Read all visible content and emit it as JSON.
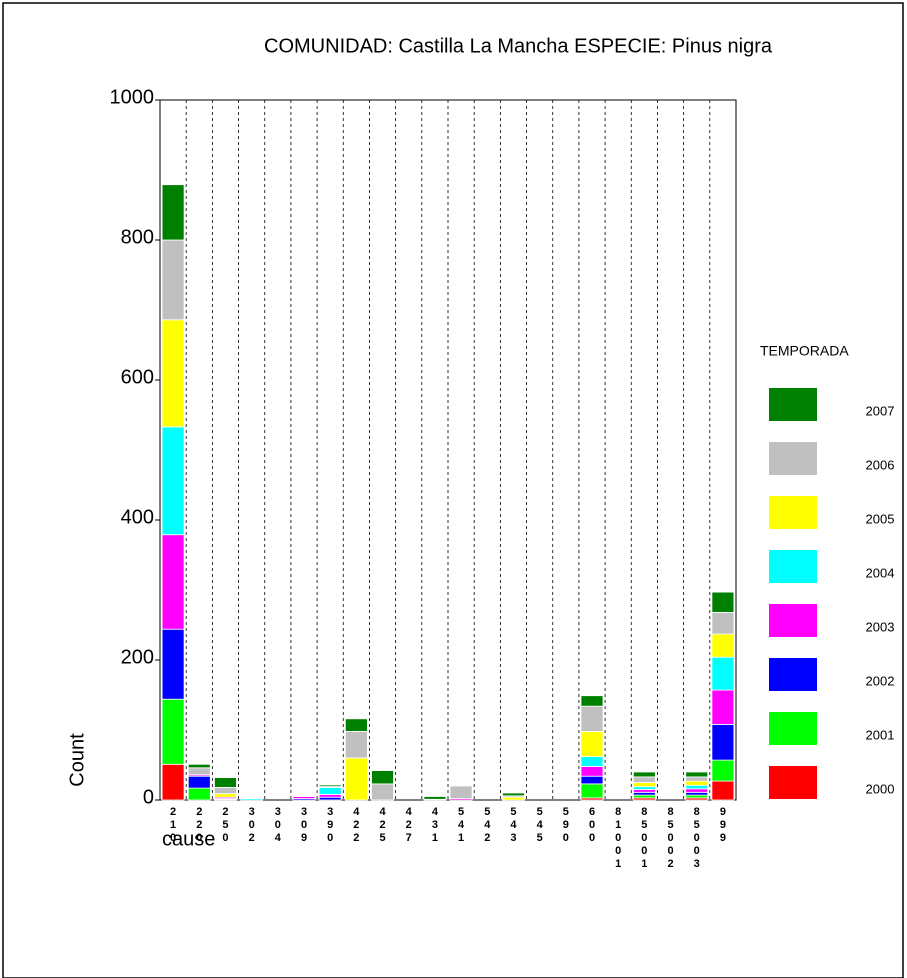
{
  "chart_data": {
    "type": "stacked-bar",
    "title": "COMUNIDAD: Castilla La Mancha ESPECIE: Pinus nigra",
    "y_label": "Count",
    "x_label": "cause",
    "legend_title": "TEMPORADA",
    "categories": [
      "210",
      "220",
      "250",
      "302",
      "304",
      "309",
      "390",
      "422",
      "425",
      "427",
      "431",
      "541",
      "542",
      "543",
      "545",
      "590",
      "600",
      "81001",
      "85001",
      "85002",
      "85003",
      "999"
    ],
    "series": [
      {
        "name": "2000",
        "color": "#ff0000",
        "values": [
          51,
          0,
          1,
          0,
          0,
          0,
          0,
          0,
          0,
          0,
          0,
          0,
          0,
          0,
          0,
          0,
          3,
          0,
          3,
          0,
          3,
          27
        ]
      },
      {
        "name": "2001",
        "color": "#00ff00",
        "values": [
          93,
          17,
          1,
          0,
          0,
          0,
          0,
          0,
          0,
          0,
          0,
          0,
          0,
          0,
          0,
          0,
          20,
          0,
          4,
          0,
          4,
          30
        ]
      },
      {
        "name": "2002",
        "color": "#0000ff",
        "values": [
          100,
          17,
          0,
          0,
          0,
          2,
          4,
          0,
          0,
          0,
          0,
          0,
          0,
          0,
          0,
          0,
          11,
          0,
          4,
          0,
          4,
          51
        ]
      },
      {
        "name": "2003",
        "color": "#ff00ff",
        "values": [
          135,
          2,
          2,
          0,
          0,
          3,
          4,
          0,
          0,
          0,
          0,
          2,
          0,
          0,
          0,
          0,
          14,
          0,
          4,
          0,
          5,
          49
        ]
      },
      {
        "name": "2004",
        "color": "#00ffff",
        "values": [
          154,
          0,
          0,
          2,
          0,
          0,
          10,
          0,
          0,
          0,
          0,
          0,
          0,
          0,
          0,
          0,
          14,
          0,
          4,
          0,
          5,
          47
        ]
      },
      {
        "name": "2005",
        "color": "#ffff00",
        "values": [
          153,
          0,
          5,
          0,
          0,
          0,
          0,
          60,
          0,
          0,
          0,
          0,
          0,
          4,
          0,
          0,
          36,
          0,
          6,
          0,
          6,
          33
        ]
      },
      {
        "name": "2006",
        "color": "#c0c0c0",
        "values": [
          114,
          10,
          9,
          0,
          0,
          0,
          2,
          38,
          23,
          0,
          1,
          18,
          0,
          2,
          0,
          0,
          36,
          0,
          8,
          0,
          6,
          31
        ]
      },
      {
        "name": "2007",
        "color": "#008000",
        "values": [
          79,
          5,
          14,
          0,
          0,
          1,
          2,
          18,
          19,
          0,
          4,
          0,
          0,
          4,
          0,
          0,
          15,
          0,
          7,
          0,
          7,
          29
        ]
      }
    ],
    "ylim": [
      0,
      1000
    ],
    "yticks": [
      0,
      200,
      400,
      600,
      800,
      1000
    ],
    "grid": "dashed-x"
  }
}
